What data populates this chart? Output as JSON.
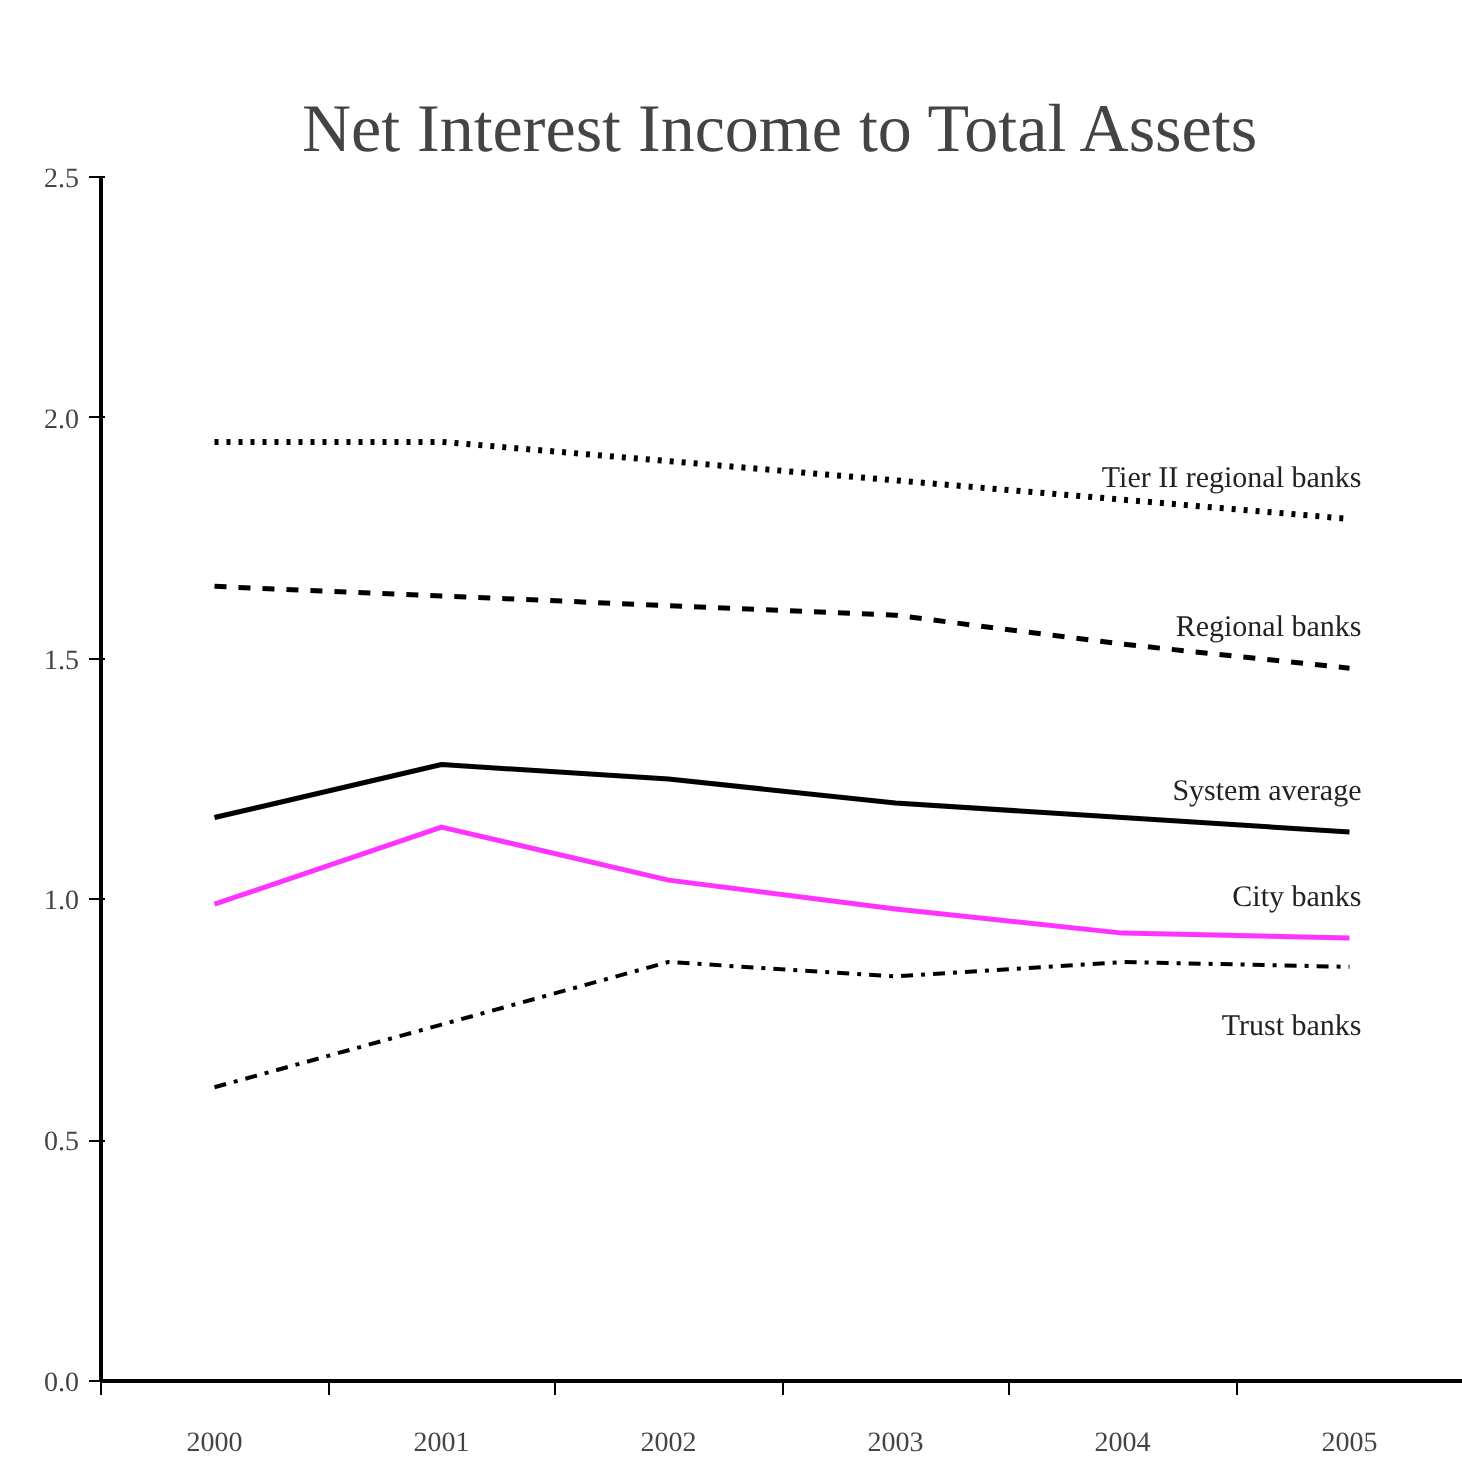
{
  "chart_data": {
    "type": "line",
    "title": "Net Interest Income to Total Assets",
    "categories": [
      "2000",
      "2001",
      "2002",
      "2003",
      "2004",
      "2005"
    ],
    "series": [
      {
        "name": "Tier II regional banks",
        "color": "#000000",
        "line_style": "dotted",
        "values": [
          1.95,
          1.95,
          1.91,
          1.87,
          1.83,
          1.79
        ]
      },
      {
        "name": "Regional banks",
        "color": "#000000",
        "line_style": "dashed",
        "values": [
          1.65,
          1.63,
          1.61,
          1.59,
          1.53,
          1.48
        ]
      },
      {
        "name": "System average",
        "color": "#000000",
        "line_style": "solid",
        "values": [
          1.17,
          1.28,
          1.25,
          1.2,
          1.17,
          1.14
        ]
      },
      {
        "name": "City banks",
        "color": "#ff33ff",
        "line_style": "solid",
        "values": [
          0.99,
          1.15,
          1.04,
          0.98,
          0.93,
          0.92
        ]
      },
      {
        "name": "Trust banks",
        "color": "#000000",
        "line_style": "dashdot",
        "values": [
          0.61,
          0.74,
          0.87,
          0.84,
          0.87,
          0.86
        ]
      }
    ],
    "ylim": [
      0,
      2.5
    ],
    "yticks": [
      {
        "value": 0,
        "label": "0.0"
      },
      {
        "value": 0.5,
        "label": "0.5"
      },
      {
        "value": 1,
        "label": "1.0"
      },
      {
        "value": 1.5,
        "label": "1.5"
      },
      {
        "value": 2,
        "label": "2.0"
      },
      {
        "value": 2.5,
        "label": "2.5"
      }
    ],
    "grid": false,
    "legend": false
  }
}
